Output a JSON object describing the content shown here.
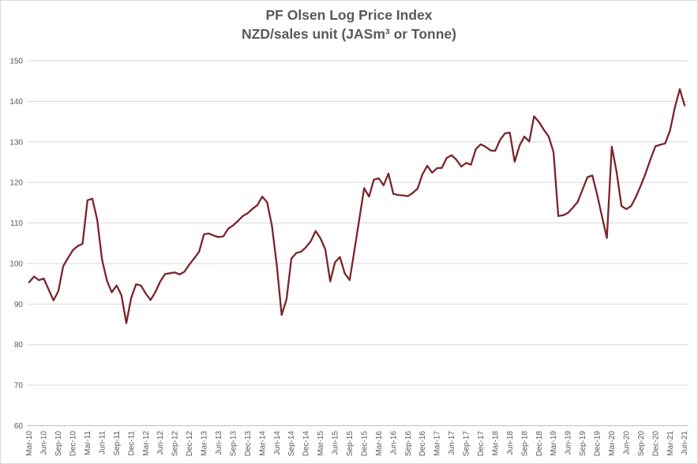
{
  "chart_data": {
    "type": "line",
    "title": "PF Olsen Log Price Index",
    "subtitle": "NZD/sales unit (JASm³ or Tonne)",
    "legend": "none",
    "grid": "horizontal",
    "ylim": [
      60,
      150
    ],
    "y_tick_step": 10,
    "y_tick_labels": [
      "60",
      "70",
      "80",
      "90",
      "100",
      "110",
      "120",
      "130",
      "140",
      "150"
    ],
    "x_frequency": "monthly data, tick label every 3rd month",
    "x_range": [
      "Mar-10",
      "Jun-21"
    ],
    "x_tick_labels": [
      "Mar-10",
      "Jun-10",
      "Sep-10",
      "Dec-10",
      "Mar-11",
      "Jun-11",
      "Sep-11",
      "Dec-11",
      "Mar-12",
      "Jun-12",
      "Sep-12",
      "Dec-12",
      "Mar-13",
      "Jun-13",
      "Sep-13",
      "Dec-13",
      "Mar-14",
      "Jun-14",
      "Sep-14",
      "Dec-14",
      "Mar-15",
      "Jun-15",
      "Sep-15",
      "Dec-15",
      "Mar-16",
      "Jun-16",
      "Sep-16",
      "Dec-16",
      "Mar-17",
      "Jun-17",
      "Sep-17",
      "Dec-17",
      "Mar-18",
      "Jun-18",
      "Sep-18",
      "Dec-18",
      "Mar-19",
      "Jun-19",
      "Sep-19",
      "Dec-19",
      "Mar-20",
      "Jun-20",
      "Sep-20",
      "Dec-20",
      "Mar-21",
      "Jun-21"
    ],
    "values": [
      95.4,
      96.8,
      95.9,
      96.3,
      93.6,
      90.9,
      93.2,
      99.3,
      101.4,
      103.3,
      104.3,
      104.9,
      115.6,
      116.0,
      110.8,
      101.0,
      95.8,
      92.9,
      94.6,
      92.2,
      85.3,
      91.5,
      94.9,
      94.6,
      92.6,
      91.0,
      93.0,
      95.6,
      97.4,
      97.6,
      97.8,
      97.3,
      98.0,
      99.8,
      101.3,
      102.9,
      107.2,
      107.4,
      106.9,
      106.5,
      106.7,
      108.6,
      109.4,
      110.5,
      111.7,
      112.4,
      113.5,
      114.4,
      116.5,
      115.1,
      109.3,
      99.5,
      87.3,
      91.2,
      101.2,
      102.6,
      102.9,
      104.0,
      105.5,
      108.0,
      106.2,
      103.5,
      95.6,
      100.3,
      101.6,
      97.6,
      95.9,
      103.3,
      111.0,
      118.6,
      116.5,
      120.7,
      121.0,
      119.3,
      122.2,
      117.2,
      116.9,
      116.8,
      116.6,
      117.4,
      118.5,
      122.0,
      124.1,
      122.4,
      123.5,
      123.6,
      126.0,
      126.7,
      125.6,
      123.9,
      124.8,
      124.4,
      128.2,
      129.4,
      128.8,
      127.9,
      127.8,
      130.5,
      132.1,
      132.3,
      125.1,
      129.1,
      131.3,
      130.1,
      136.3,
      134.9,
      133.0,
      131.3,
      127.5,
      111.7,
      111.9,
      112.5,
      113.8,
      115.2,
      118.3,
      121.3,
      121.7,
      117.0,
      111.5,
      106.3,
      128.8,
      122.6,
      114.2,
      113.4,
      114.2,
      116.5,
      119.3,
      122.3,
      125.8,
      128.9,
      129.3,
      129.6,
      132.8,
      138.5,
      143.0,
      139.0
    ],
    "colors": {
      "line": "#7A252A",
      "gridline": "#D9D9D9",
      "axis_line": "#BFBFBF",
      "labels": "#595959",
      "title": "#595959",
      "background": "#FFFFFF",
      "frame_border": "#D9D9D9"
    }
  }
}
